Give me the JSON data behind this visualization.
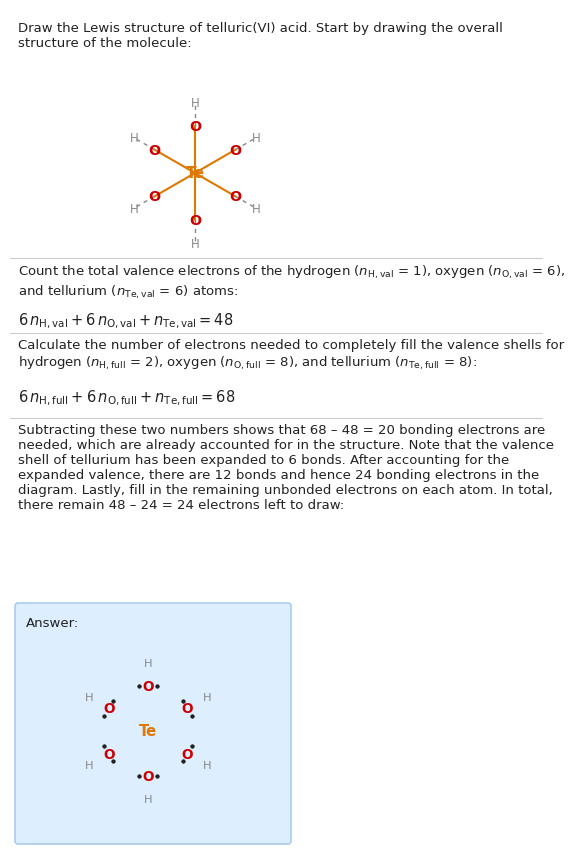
{
  "title_text": "Draw the Lewis structure of telluric(VI) acid. Start by drawing the overall\nstructure of the molecule:",
  "section1_text": "Count the total valence electrons of the hydrogen ($n_{\\mathrm{H,val}}$ = 1), oxygen ($n_{\\mathrm{O,val}}$ = 6),\nand tellurium ($n_{\\mathrm{Te,val}}$ = 6) atoms:",
  "section1_eq": "$6\\,n_{\\mathrm{H,val}} + 6\\,n_{\\mathrm{O,val}} + n_{\\mathrm{Te,val}} = 48$",
  "section2_text": "Calculate the number of electrons needed to completely fill the valence shells for\nhydrogen ($n_{\\mathrm{H,full}}$ = 2), oxygen ($n_{\\mathrm{O,full}}$ = 8), and tellurium ($n_{\\mathrm{Te,full}}$ = 8):",
  "section2_eq": "$6\\,n_{\\mathrm{H,full}} + 6\\,n_{\\mathrm{O,full}} + n_{\\mathrm{Te,full}} = 68$",
  "section3_text": "Subtracting these two numbers shows that 68 – 48 = 20 bonding electrons are\nneeded, which are already accounted for in the structure. Note that the valence\nshell of tellurium has been expanded to 6 bonds. After accounting for the\nexpanded valence, there are 12 bonds and hence 24 bonding electrons in the\ndiagram. Lastly, fill in the remaining unbonded electrons on each atom. In total,\nthere remain 48 – 24 = 24 electrons left to draw:",
  "answer_label": "Answer:",
  "bg_color": "#ffffff",
  "answer_bg": "#ddeeff",
  "te_color": "#e07800",
  "o_color": "#cc0000",
  "h_color": "#888888",
  "bond_color_main": "#e07800",
  "bond_color_oh": "#cc0000",
  "line_color": "#cccccc"
}
